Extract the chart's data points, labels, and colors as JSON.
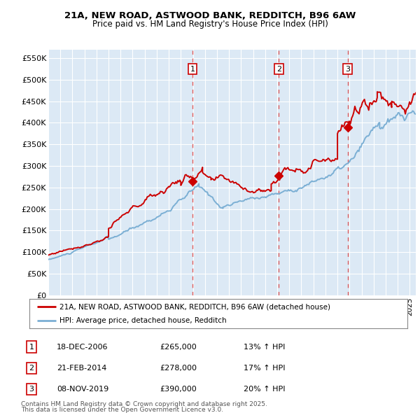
{
  "title1": "21A, NEW ROAD, ASTWOOD BANK, REDDITCH, B96 6AW",
  "title2": "Price paid vs. HM Land Registry's House Price Index (HPI)",
  "ylabel_ticks": [
    "£0",
    "£50K",
    "£100K",
    "£150K",
    "£200K",
    "£250K",
    "£300K",
    "£350K",
    "£400K",
    "£450K",
    "£500K",
    "£550K"
  ],
  "ytick_values": [
    0,
    50000,
    100000,
    150000,
    200000,
    250000,
    300000,
    350000,
    400000,
    450000,
    500000,
    550000
  ],
  "ylim": [
    0,
    570000
  ],
  "xlim_start": 1995.0,
  "xlim_end": 2025.5,
  "background_color": "#dce9f5",
  "grid_color": "#ffffff",
  "red_line_color": "#cc0000",
  "blue_line_color": "#7bafd4",
  "vline_color": "#dd4444",
  "legend_label_red": "21A, NEW ROAD, ASTWOOD BANK, REDDITCH, B96 6AW (detached house)",
  "legend_label_blue": "HPI: Average price, detached house, Redditch",
  "transaction1_date": "18-DEC-2006",
  "transaction1_price": "£265,000",
  "transaction1_hpi": "13% ↑ HPI",
  "transaction1_x": 2006.96,
  "transaction1_y": 265000,
  "transaction2_date": "21-FEB-2014",
  "transaction2_price": "£278,000",
  "transaction2_hpi": "17% ↑ HPI",
  "transaction2_x": 2014.13,
  "transaction2_y": 278000,
  "transaction3_date": "08-NOV-2019",
  "transaction3_price": "£390,000",
  "transaction3_hpi": "20% ↑ HPI",
  "transaction3_x": 2019.85,
  "transaction3_y": 390000,
  "footer_line1": "Contains HM Land Registry data © Crown copyright and database right 2025.",
  "footer_line2": "This data is licensed under the Open Government Licence v3.0."
}
